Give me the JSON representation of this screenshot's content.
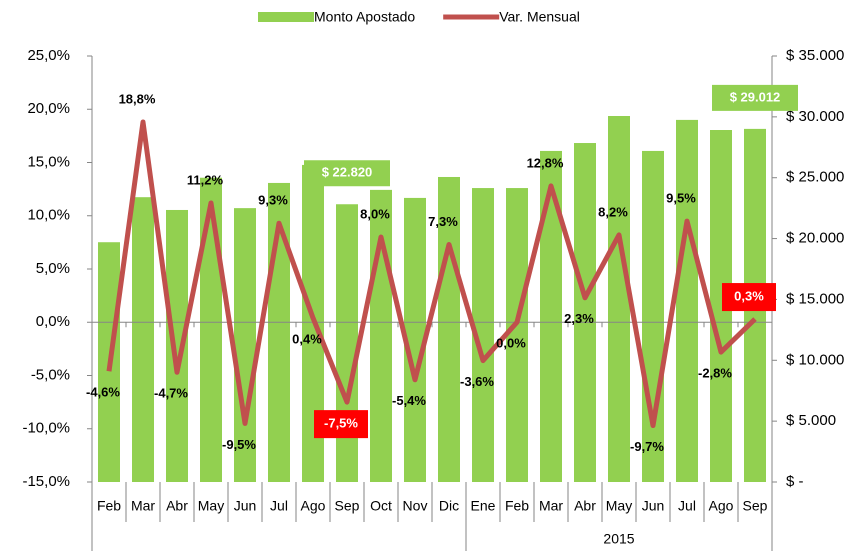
{
  "chart_data": {
    "type": "bar_line",
    "categories": [
      "Feb",
      "Mar",
      "Abr",
      "May",
      "Jun",
      "Jul",
      "Ago",
      "Sep",
      "Oct",
      "Nov",
      "Dic",
      "Ene",
      "Feb",
      "Mar",
      "Abr",
      "May",
      "Jun",
      "Jul",
      "Ago",
      "Sep"
    ],
    "x_groups": [
      {
        "label": null,
        "count": 11
      },
      {
        "label": "2015",
        "count": 9
      }
    ],
    "series": [
      {
        "name": "Monto Apostado",
        "type": "bar",
        "axis": "y2",
        "color": "#92d050",
        "values": [
          19700,
          23400,
          22350,
          25000,
          22500,
          24570,
          26050,
          22820,
          24000,
          23340,
          25060,
          24150,
          24150,
          27200,
          27850,
          30070,
          27200,
          29750,
          28920,
          29012
        ],
        "value_labels": [
          null,
          null,
          null,
          null,
          null,
          null,
          null,
          "$ 22.820",
          null,
          null,
          null,
          null,
          null,
          null,
          null,
          null,
          null,
          null,
          null,
          "$ 29.012"
        ]
      },
      {
        "name": "Var. Mensual",
        "type": "line",
        "axis": "y",
        "color": "#c0504d",
        "values": [
          -4.6,
          18.8,
          -4.7,
          11.2,
          -9.5,
          9.3,
          0.4,
          -7.5,
          8.0,
          -5.4,
          7.3,
          -3.6,
          0.0,
          12.8,
          2.3,
          8.2,
          -9.7,
          9.5,
          -2.8,
          0.3
        ],
        "value_labels": [
          "-4,6%",
          "18,8%",
          "-4,7%",
          "11,2%",
          "-9,5%",
          "9,3%",
          "0,4%",
          "-7,5%",
          "8,0%",
          "-5,4%",
          "7,3%",
          "-3,6%",
          "0,0%",
          "12,8%",
          "2,3%",
          "8,2%",
          "-9,7%",
          "9,5%",
          "-2,8%",
          "0,3%"
        ],
        "highlighted": [
          7,
          19
        ],
        "highlight_color": "#ff0000"
      }
    ],
    "ylim": [
      -15,
      25
    ],
    "yticks": [
      {
        "value": -15,
        "label": "-15,0%"
      },
      {
        "value": -10,
        "label": "-10,0%"
      },
      {
        "value": -5,
        "label": "-5,0%"
      },
      {
        "value": 0,
        "label": "0,0%"
      },
      {
        "value": 5,
        "label": "5,0%"
      },
      {
        "value": 10,
        "label": "10,0%"
      },
      {
        "value": 15,
        "label": "15,0%"
      },
      {
        "value": 20,
        "label": "20,0%"
      },
      {
        "value": 25,
        "label": "25,0%"
      }
    ],
    "y2lim": [
      0,
      35000
    ],
    "y2ticks": [
      {
        "value": 0,
        "label": "$ -"
      },
      {
        "value": 5000,
        "label": "$ 5.000"
      },
      {
        "value": 10000,
        "label": "$ 10.000"
      },
      {
        "value": 15000,
        "label": "$ 15.000"
      },
      {
        "value": 20000,
        "label": "$ 20.000"
      },
      {
        "value": 25000,
        "label": "$ 25.000"
      },
      {
        "value": 30000,
        "label": "$ 30.000"
      },
      {
        "value": 35000,
        "label": "$ 35.000"
      }
    ],
    "legend": "top"
  }
}
